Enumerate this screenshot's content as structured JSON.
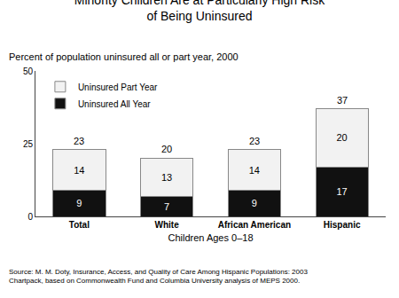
{
  "chart_data": {
    "type": "bar",
    "title": "Minority Children Are at Particularly High Risk of Being Uninsured",
    "subtitle": "Percent of population uninsured all or part year, 2000",
    "xlabel": "Children Ages 0–18",
    "source": "Source: M. M. Doty, Insurance, Access, and Quality of Care Among Hispanic Populations: 2003 Chartpack, based on Commonwealth Fund and Columbia University analysis of MEPS 2000.",
    "categories": [
      "Total",
      "White",
      "African American",
      "Hispanic"
    ],
    "series": [
      {
        "name": "Uninsured All Year",
        "color": "#111111",
        "values": [
          9,
          7,
          9,
          17
        ]
      },
      {
        "name": "Uninsured Part Year",
        "color": "#f2f2f2",
        "values": [
          14,
          13,
          14,
          20
        ]
      }
    ],
    "totals": [
      23,
      20,
      23,
      37
    ],
    "stacked": true,
    "data_labels": true,
    "ylim": [
      0,
      50
    ],
    "yticks": [
      0,
      25,
      50
    ],
    "grid": false,
    "legend": "upper left"
  }
}
